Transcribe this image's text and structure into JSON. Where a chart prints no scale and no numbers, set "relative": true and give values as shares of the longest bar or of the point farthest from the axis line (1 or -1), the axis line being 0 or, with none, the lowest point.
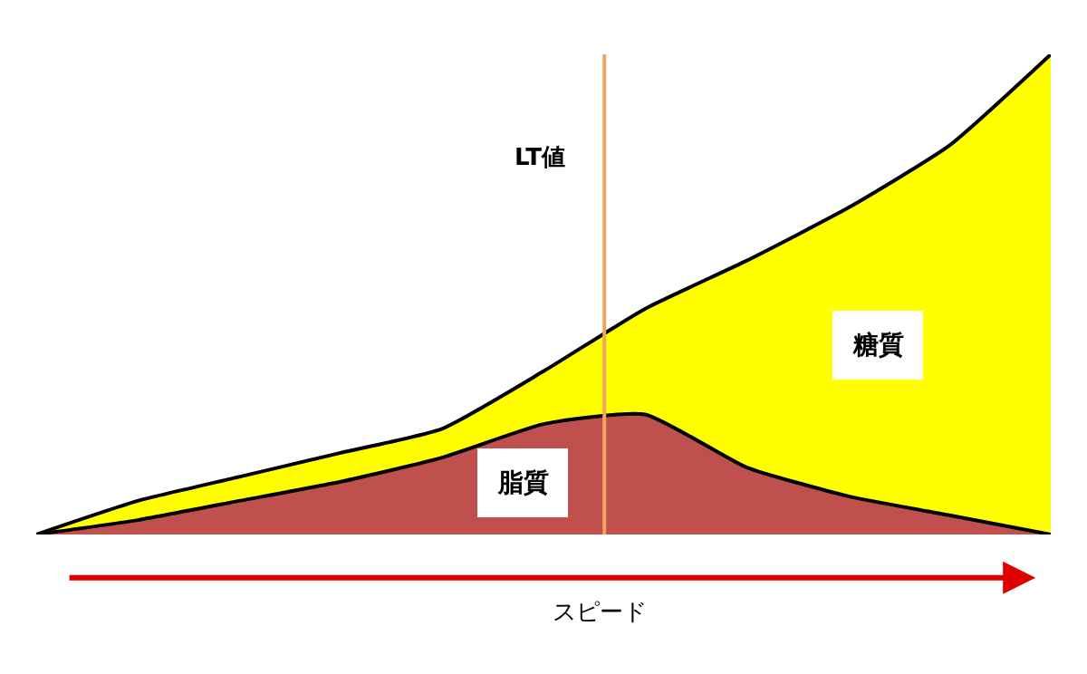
{
  "chart_data": {
    "type": "area",
    "stacked": true,
    "relative": true,
    "legend": false,
    "xlabel": "スピード",
    "categories": [
      null,
      null,
      null,
      null,
      null,
      null,
      null,
      null,
      null,
      null,
      null
    ],
    "series": [
      {
        "name": "脂質",
        "color": "#c0504d",
        "values": [
          0,
          0.03,
          0.07,
          0.11,
          0.16,
          0.23,
          0.25,
          0.14,
          0.08,
          0.04,
          0
        ]
      },
      {
        "name": "糖質",
        "color": "#ffff00",
        "values": [
          0,
          0.04,
          0.05,
          0.06,
          0.06,
          0.11,
          0.22,
          0.43,
          0.6,
          0.77,
          1.0
        ]
      }
    ],
    "annotations": [
      "LT値"
    ]
  }
}
